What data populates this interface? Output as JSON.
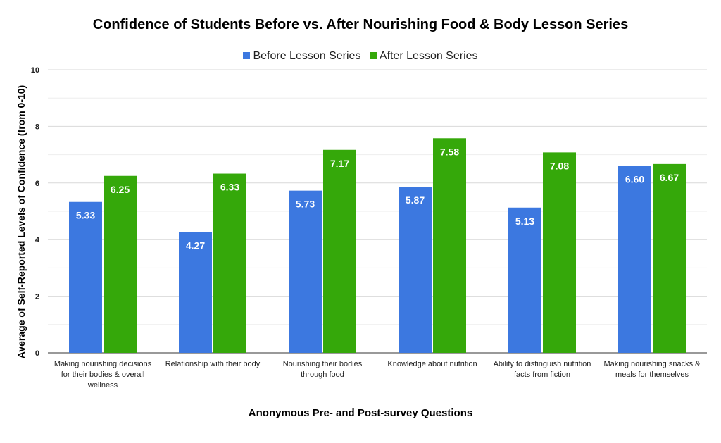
{
  "chart_data": {
    "type": "bar",
    "title": "Confidence of Students Before vs. After Nourishing Food & Body Lesson Series",
    "xlabel": "Anonymous Pre- and Post-survey Questions",
    "ylabel": "Average of Self-Reported Levels of Confidence (from 0-10)",
    "ylim": [
      0,
      10
    ],
    "yticks": [
      "0",
      "2",
      "4",
      "6",
      "8",
      "10"
    ],
    "legend_position": "top",
    "categories": [
      "Making nourishing decisions for their bodies & overall wellness",
      "Relationship with their body",
      "Nourishing their bodies through food",
      "Knowledge about nutrition",
      "Ability to distinguish nutrition facts from fiction",
      "Making nourishing snacks & meals for themselves"
    ],
    "series": [
      {
        "name": "Before Lesson Series",
        "color": "#3c78e0",
        "values": [
          5.33,
          4.27,
          5.73,
          5.87,
          5.13,
          6.6
        ],
        "labels": [
          "5.33",
          "4.27",
          "5.73",
          "5.87",
          "5.13",
          "6.60"
        ]
      },
      {
        "name": "After Lesson Series",
        "color": "#35a80a",
        "values": [
          6.25,
          6.33,
          7.17,
          7.58,
          7.08,
          6.67
        ],
        "labels": [
          "6.25",
          "6.33",
          "7.17",
          "7.58",
          "7.08",
          "6.67"
        ]
      }
    ]
  }
}
